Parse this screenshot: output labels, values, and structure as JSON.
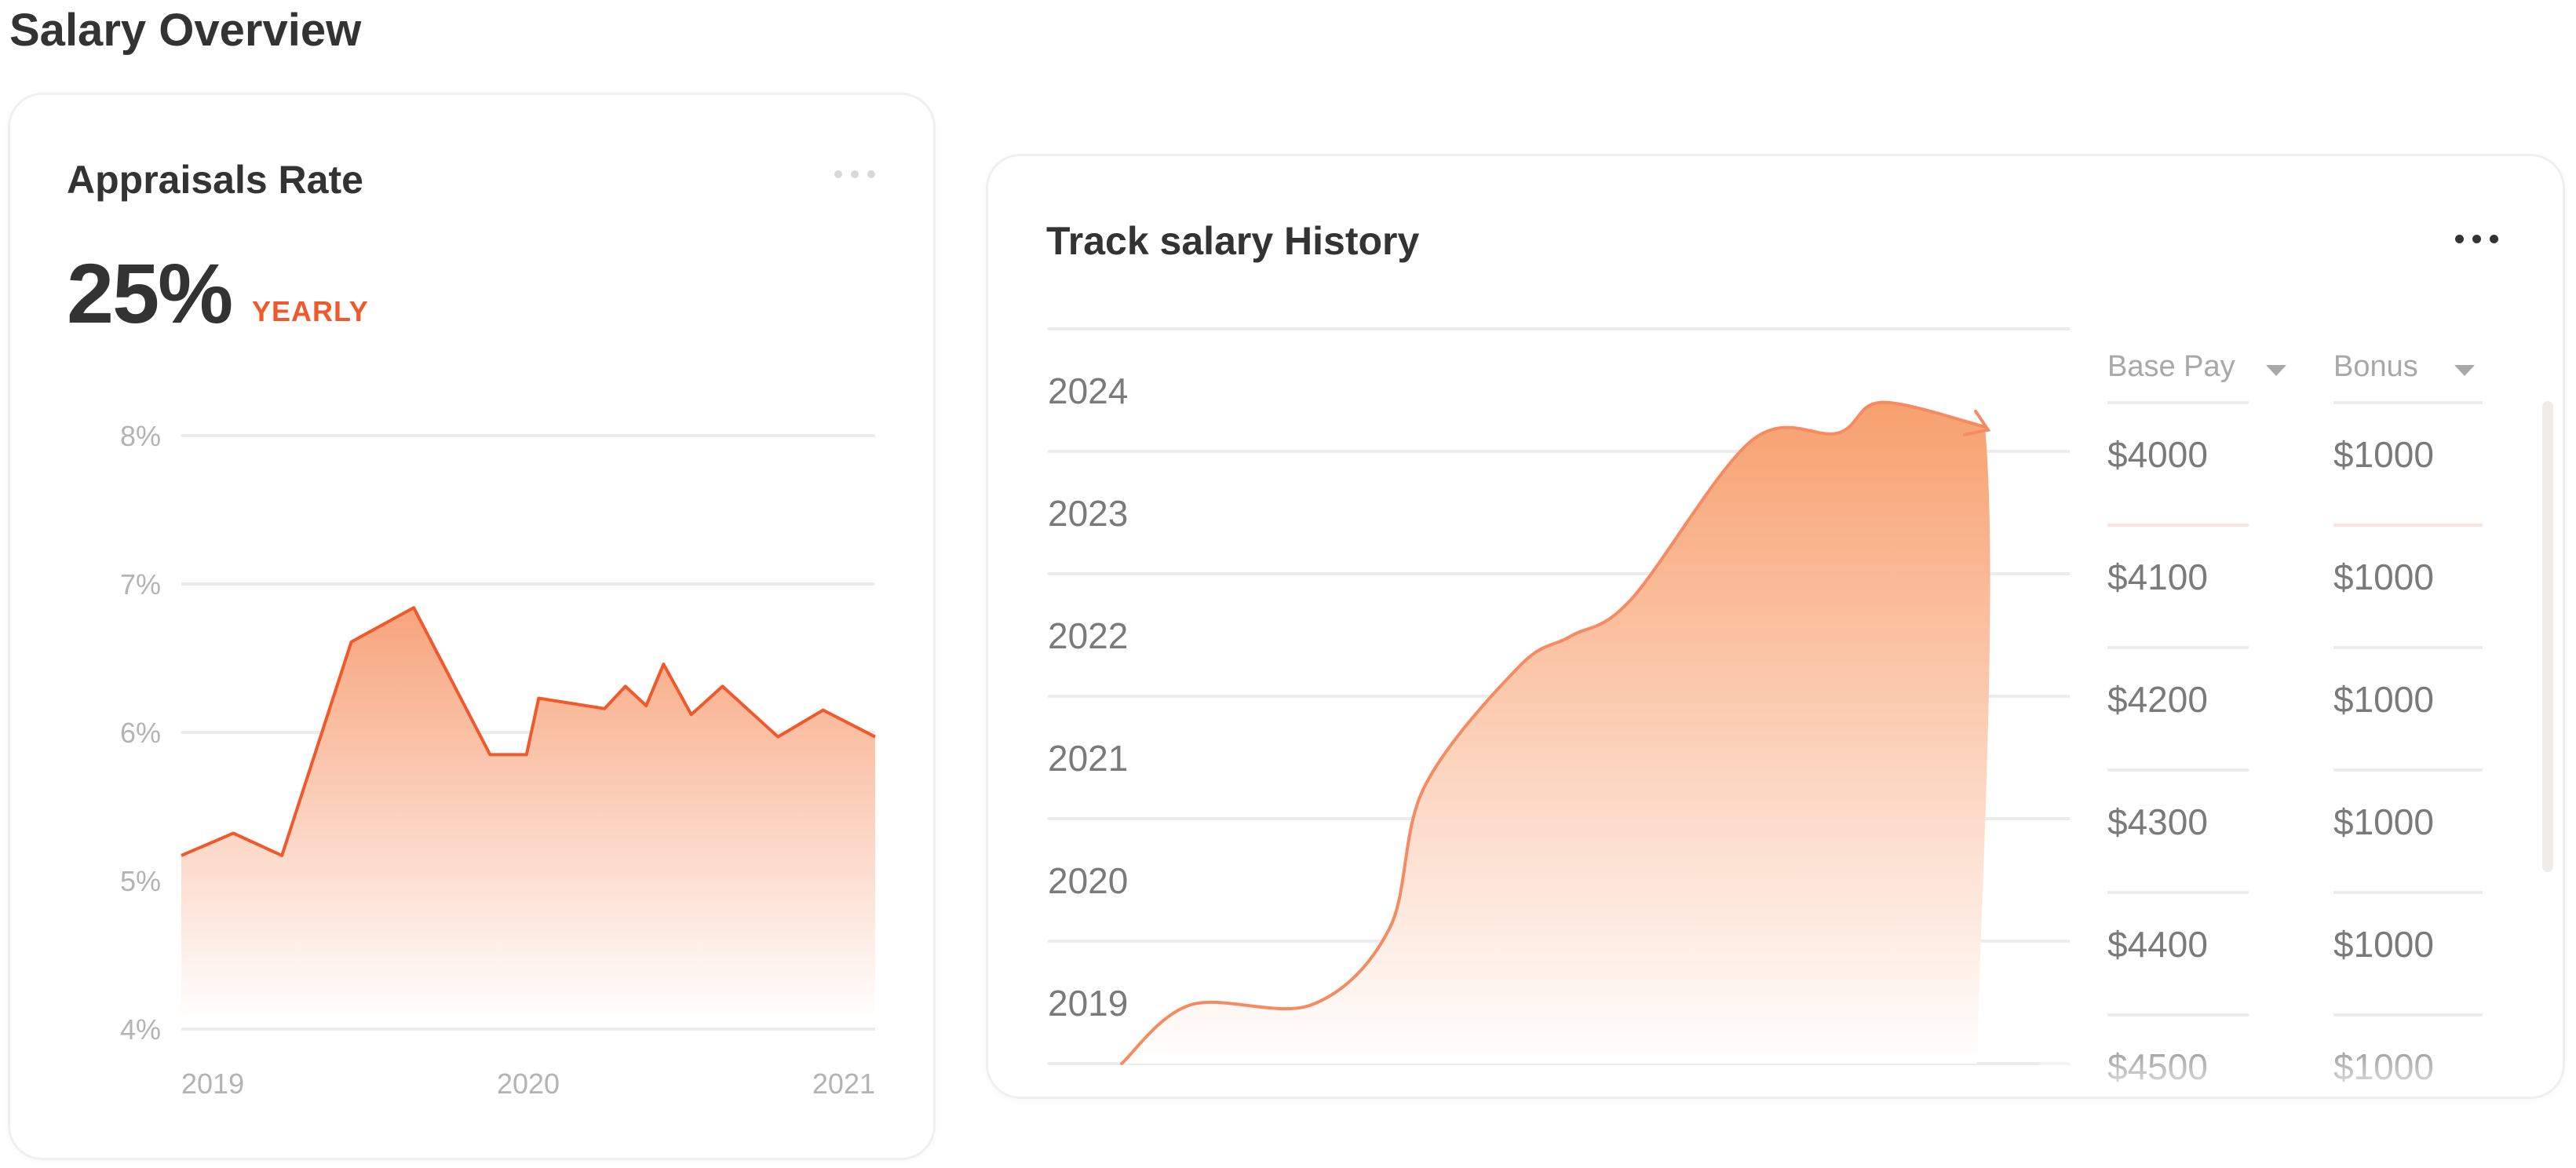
{
  "page": {
    "title": "Salary Overview"
  },
  "appraisals": {
    "title": "Appraisals Rate",
    "menu_icon": "more-horizontal-icon",
    "value": "25%",
    "period": "YEARLY",
    "colors": {
      "accent": "#f1582c",
      "fill_top": "#f7a47c",
      "fill_bottom": "#ffffff"
    }
  },
  "history": {
    "title": "Track salary History",
    "menu_icon": "more-horizontal-icon",
    "columns": [
      {
        "label": "Base Pay",
        "icon": "caret-down-icon"
      },
      {
        "label": "Bonus",
        "icon": "caret-down-icon"
      }
    ],
    "rows": [
      {
        "base": "$4000",
        "bonus": "$1000"
      },
      {
        "base": "$4100",
        "bonus": "$1000"
      },
      {
        "base": "$4200",
        "bonus": "$1000"
      },
      {
        "base": "$4300",
        "bonus": "$1000"
      },
      {
        "base": "$4400",
        "bonus": "$1000"
      },
      {
        "base": "$4500",
        "bonus": "$1000"
      }
    ],
    "colors": {
      "accent": "#f58a63",
      "fill_top": "#f7a06e",
      "fill_bottom": "#ffffff"
    }
  },
  "chart_data": [
    {
      "type": "area",
      "title": "",
      "x_ticks": [
        "2019",
        "2020",
        "2021"
      ],
      "y_ticks": [
        "8%",
        "7%",
        "6%",
        "5%",
        "4%"
      ],
      "ylim": [
        4,
        8
      ],
      "xlim": [
        2019.0,
        2021.0
      ],
      "grid": true,
      "series": [
        {
          "x": [
            2019.0,
            2019.15,
            2019.29,
            2019.49,
            2019.67,
            2019.89,
            2019.995,
            2020.03,
            2020.22,
            2020.28,
            2020.34,
            2020.39,
            2020.47,
            2020.56,
            2020.72,
            2020.85,
            2021.0
          ],
          "y": [
            5.17,
            5.32,
            5.17,
            6.61,
            6.84,
            5.85,
            5.85,
            6.23,
            6.16,
            6.31,
            6.18,
            6.46,
            6.12,
            6.31,
            5.97,
            6.15,
            5.97
          ]
        }
      ]
    },
    {
      "type": "area",
      "title": "",
      "y_ticks": [
        "2024",
        "2023",
        "2022",
        "2021",
        "2020",
        "2019"
      ],
      "ylim": [
        2018.5,
        2024.5
      ],
      "grid": true,
      "series": [
        {
          "x": [
            0.0,
            0.08,
            0.22,
            0.31,
            0.35,
            0.46,
            0.52,
            0.59,
            0.73,
            0.83,
            0.88,
            1.0
          ],
          "y": [
            2018.5,
            2018.98,
            2018.98,
            2019.6,
            2020.75,
            2021.74,
            2021.99,
            2022.29,
            2023.59,
            2023.65,
            2023.9,
            2023.7
          ]
        }
      ]
    }
  ]
}
